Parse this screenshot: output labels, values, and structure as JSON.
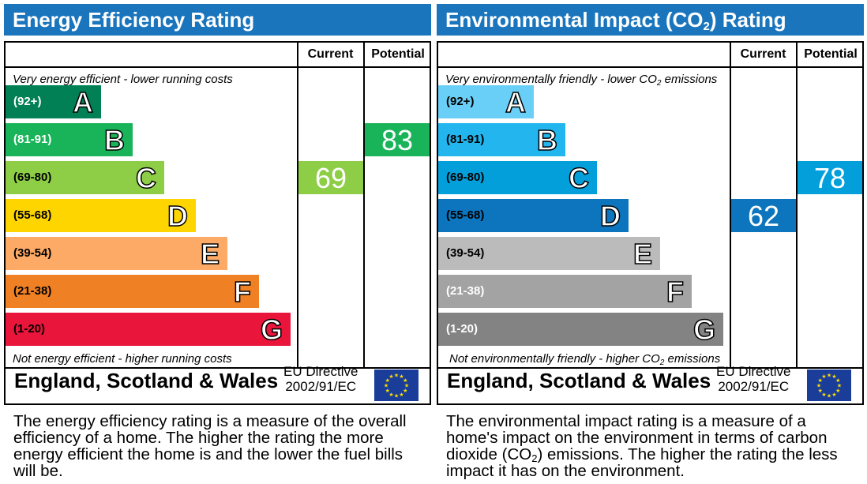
{
  "panels": [
    {
      "id": "energy",
      "title": "Energy Efficiency Rating",
      "current_header": "Current",
      "potential_header": "Potential",
      "top_text": "Very energy efficient - lower running costs",
      "bottom_text": "Not energy efficient - higher running costs",
      "footer_region": "England, Scotland & Wales",
      "eu_line1": "EU Directive",
      "eu_line2": "2002/91/EC",
      "description": "The energy efficiency rating is a measure of the overall efficiency of a home. The higher the rating the more energy efficient the home is and the lower the fuel bills will be."
    },
    {
      "id": "environment",
      "title_before_sub": "Environmental Impact (CO",
      "title_sub": "2",
      "title_after_sub": ") Rating",
      "current_header": "Current",
      "potential_header": "Potential",
      "top_before_sub": "Very environmentally friendly - lower CO",
      "top_sub": "2",
      "top_after_sub": " emissions",
      "bottom_before_sub": "Not environmentally friendly - higher CO",
      "bottom_sub": "2",
      "bottom_after_sub": " emissions",
      "footer_region": "England, Scotland & Wales",
      "eu_line1": "EU Directive",
      "eu_line2": "2002/91/EC",
      "desc_before_sub": "The environmental impact rating is a measure of a home's impact on the environment in terms of carbon dioxide (CO",
      "desc_sub": "2",
      "desc_after_sub": ") emissions. The higher the rating the less impact it has on the environment."
    }
  ],
  "chart_data": [
    {
      "type": "bar",
      "bands": [
        {
          "letter": "A",
          "range": "(92+)",
          "color": "#008054",
          "range_color": "#ffffff"
        },
        {
          "letter": "B",
          "range": "(81-91)",
          "color": "#19b459",
          "range_color": "#ffffff"
        },
        {
          "letter": "C",
          "range": "(69-80)",
          "color": "#8dce46",
          "range_color": "#000000"
        },
        {
          "letter": "D",
          "range": "(55-68)",
          "color": "#ffd500",
          "range_color": "#000000"
        },
        {
          "letter": "E",
          "range": "(39-54)",
          "color": "#fcaa65",
          "range_color": "#000000"
        },
        {
          "letter": "F",
          "range": "(21-38)",
          "color": "#ef8023",
          "range_color": "#000000"
        },
        {
          "letter": "G",
          "range": "(1-20)",
          "color": "#e9153b",
          "range_color": "#000000"
        }
      ],
      "current": {
        "value": 69,
        "band": "C",
        "color": "#8dce46"
      },
      "potential": {
        "value": 83,
        "band": "B",
        "color": "#19b459"
      }
    },
    {
      "type": "bar",
      "bands": [
        {
          "letter": "A",
          "range": "(92+)",
          "color": "#6acff6",
          "range_color": "#000000"
        },
        {
          "letter": "B",
          "range": "(81-91)",
          "color": "#22b5ee",
          "range_color": "#000000"
        },
        {
          "letter": "C",
          "range": "(69-80)",
          "color": "#039fdb",
          "range_color": "#000000"
        },
        {
          "letter": "D",
          "range": "(55-68)",
          "color": "#0c75bd",
          "range_color": "#000000"
        },
        {
          "letter": "E",
          "range": "(39-54)",
          "color": "#bbbbbb",
          "range_color": "#000000"
        },
        {
          "letter": "F",
          "range": "(21-38)",
          "color": "#a3a3a3",
          "range_color": "#ffffff"
        },
        {
          "letter": "G",
          "range": "(1-20)",
          "color": "#838383",
          "range_color": "#ffffff"
        }
      ],
      "current": {
        "value": 62,
        "band": "D",
        "color": "#0c75bd"
      },
      "potential": {
        "value": 78,
        "band": "C",
        "color": "#039fdb"
      }
    }
  ]
}
